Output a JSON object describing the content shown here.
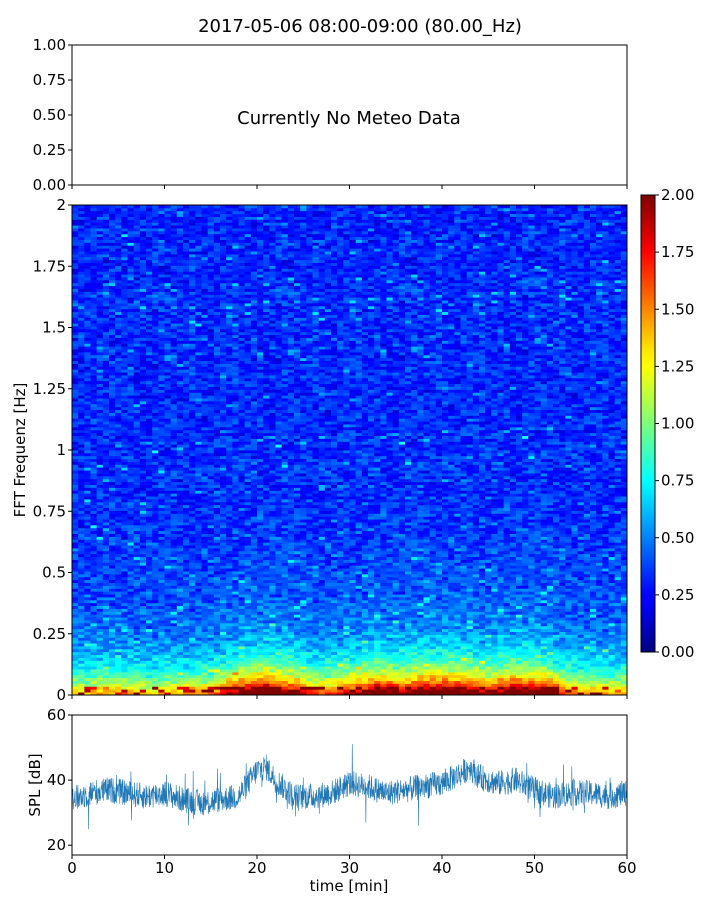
{
  "chart_data": [
    {
      "type": "line",
      "panel": "meteo",
      "title": "2017-05-06 08:00-09:00 (80.00_Hz)",
      "annotation": "Currently No Meteo Data",
      "ylim": [
        0,
        1
      ],
      "yticks": [
        "0.00",
        "0.25",
        "0.50",
        "0.75",
        "1.00"
      ],
      "series": []
    },
    {
      "type": "heatmap",
      "panel": "spectrogram",
      "ylabel": "FFT Frequenz [Hz]",
      "xlim": [
        0,
        60
      ],
      "ylim": [
        0,
        2
      ],
      "yticks": [
        "0",
        "0.25",
        "0.5",
        "0.75",
        "1",
        "1.25",
        "1.5",
        "1.75",
        "2"
      ],
      "colormap": "jet",
      "clim": [
        0,
        2
      ],
      "colorbar_ticks": [
        "0.00",
        "0.25",
        "0.50",
        "0.75",
        "1.00",
        "1.25",
        "1.50",
        "1.75",
        "2.00"
      ],
      "low_freq_intensity_profile": {
        "time_min": [
          0,
          5,
          10,
          15,
          18,
          21,
          24,
          27,
          30,
          33,
          36,
          39,
          42,
          45,
          48,
          51,
          54,
          57,
          60
        ],
        "relative_level": [
          0.35,
          0.4,
          0.35,
          0.45,
          0.75,
          0.95,
          0.7,
          0.5,
          0.65,
          0.85,
          0.75,
          0.9,
          0.85,
          0.7,
          0.9,
          0.8,
          0.45,
          0.4,
          0.4
        ]
      }
    },
    {
      "type": "line",
      "panel": "spl",
      "xlabel": "time [min]",
      "ylabel": "SPL [dB]",
      "xlim": [
        0,
        60
      ],
      "ylim": [
        17,
        60
      ],
      "xticks": [
        "0",
        "10",
        "20",
        "30",
        "40",
        "50",
        "60"
      ],
      "yticks": [
        "20",
        "40",
        "60"
      ],
      "line_color": "#1f77b4",
      "series": [
        {
          "x": [
            0,
            2,
            4,
            6,
            8,
            10,
            12,
            14,
            16,
            18,
            20,
            21,
            22,
            24,
            26,
            28,
            30,
            32,
            34,
            36,
            38,
            40,
            42,
            43,
            44,
            46,
            48,
            50,
            52,
            54,
            56,
            58,
            60
          ],
          "y": [
            34,
            36,
            37,
            36,
            35,
            36,
            34,
            33,
            34,
            35,
            43,
            44,
            40,
            35,
            35,
            36,
            39,
            38,
            36,
            37,
            38,
            39,
            42,
            44,
            41,
            39,
            40,
            37,
            35,
            36,
            36,
            35,
            36
          ]
        }
      ]
    }
  ]
}
